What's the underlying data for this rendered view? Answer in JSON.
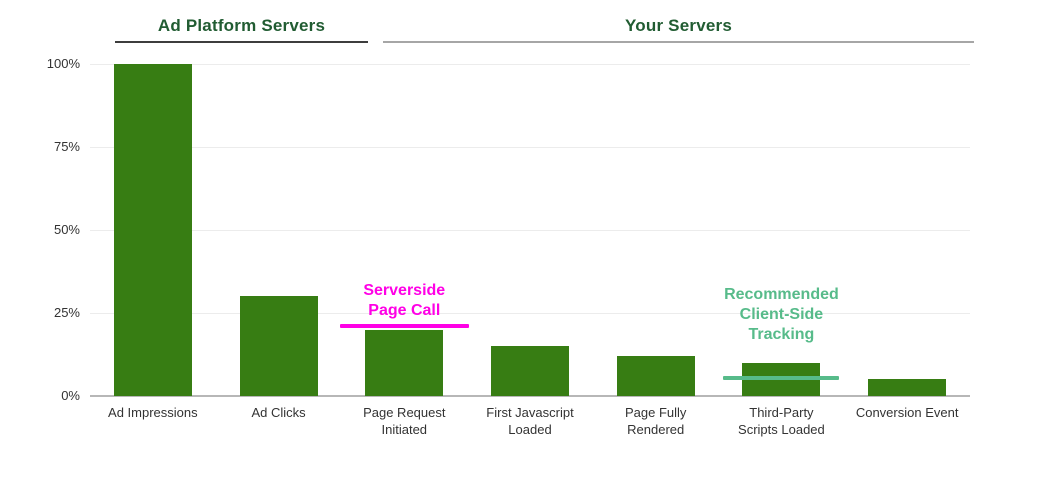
{
  "chart_data": {
    "type": "bar",
    "title": "",
    "xlabel": "",
    "ylabel": "",
    "ylim": [
      0,
      100
    ],
    "grid": true,
    "legend": "none",
    "bar_color": "#377d13",
    "axis_text_color": "#333333",
    "categories": [
      "Ad Impressions",
      "Ad Clicks",
      "Page Request Initiated",
      "First Javascript Loaded",
      "Page Fully Rendered",
      "Third-Party Scripts Loaded",
      "Conversion Event"
    ],
    "category_lines": [
      [
        "Ad Impressions"
      ],
      [
        "Ad Clicks"
      ],
      [
        "Page Request",
        "Initiated"
      ],
      [
        "First Javascript",
        "Loaded"
      ],
      [
        "Page Fully",
        "Rendered"
      ],
      [
        "Third-Party",
        "Scripts Loaded"
      ],
      [
        "Conversion Event"
      ]
    ],
    "values": [
      100,
      30,
      20,
      15,
      12,
      10,
      5
    ],
    "yticks": [
      "0%",
      "25%",
      "50%",
      "75%",
      "100%"
    ],
    "ytick_values": [
      0,
      25,
      50,
      75,
      100
    ],
    "group_headers": [
      {
        "label": "Ad Platform Servers",
        "text_color": "#215c32",
        "underline_color": "#3d3d3d"
      },
      {
        "label": "Your Servers",
        "text_color": "#215c32",
        "underline_color": "#a6a6a6"
      }
    ],
    "annotations": [
      {
        "lines": [
          "Serverside",
          "Page Call"
        ],
        "label": "Serverside Page Call",
        "category_index": 2,
        "line_value_percent": 21,
        "color": "#ff00e6"
      },
      {
        "lines": [
          "Recommended",
          "Client-Side",
          "Tracking"
        ],
        "label": "Recommended Client-Side Tracking",
        "category_index": 5,
        "line_value_percent": 5.5,
        "color": "#57bb8a"
      }
    ]
  }
}
